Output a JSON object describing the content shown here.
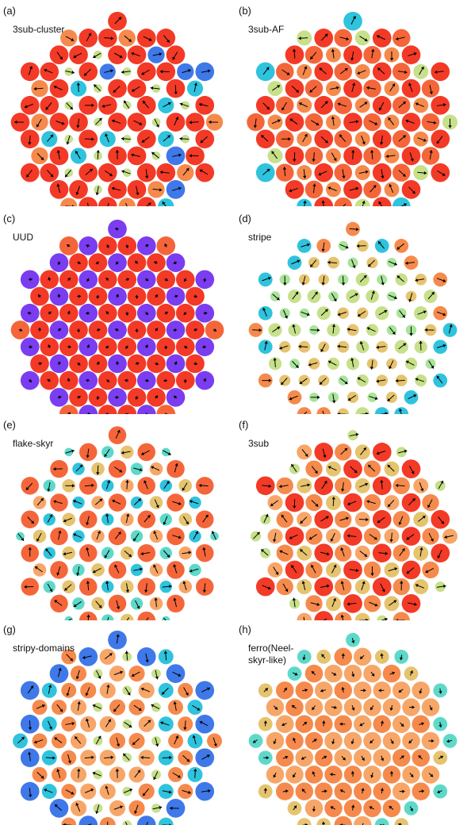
{
  "colors": {
    "red": "#f23a27",
    "orange_red": "#f4663a",
    "orange": "#f58a4c",
    "light_orange": "#f7a668",
    "tan": "#e6c36e",
    "lime": "#c7e08a",
    "light_green": "#a9e49a",
    "cyan": "#2fc3dd",
    "teal": "#5ed9c9",
    "blue": "#3f78e8",
    "purple": "#7a3df0",
    "arrow": "#000000"
  },
  "panels": [
    {
      "label": "(a)",
      "name": "3sub-cluster",
      "pattern": "3sub-cluster"
    },
    {
      "label": "(b)",
      "name": "3sub-AF",
      "pattern": "3sub-AF"
    },
    {
      "label": "(c)",
      "name": "UUD",
      "pattern": "UUD"
    },
    {
      "label": "(d)",
      "name": "stripe",
      "pattern": "stripe"
    },
    {
      "label": "(e)",
      "name": "flake-skyr",
      "pattern": "flake-skyr"
    },
    {
      "label": "(f)",
      "name": "3sub",
      "pattern": "3sub"
    },
    {
      "label": "(g)",
      "name": "stripy-domains",
      "pattern": "stripy-domains"
    },
    {
      "label": "(h)",
      "name": "ferro(Neel-\nskyr-like)",
      "pattern": "ferro"
    }
  ]
}
